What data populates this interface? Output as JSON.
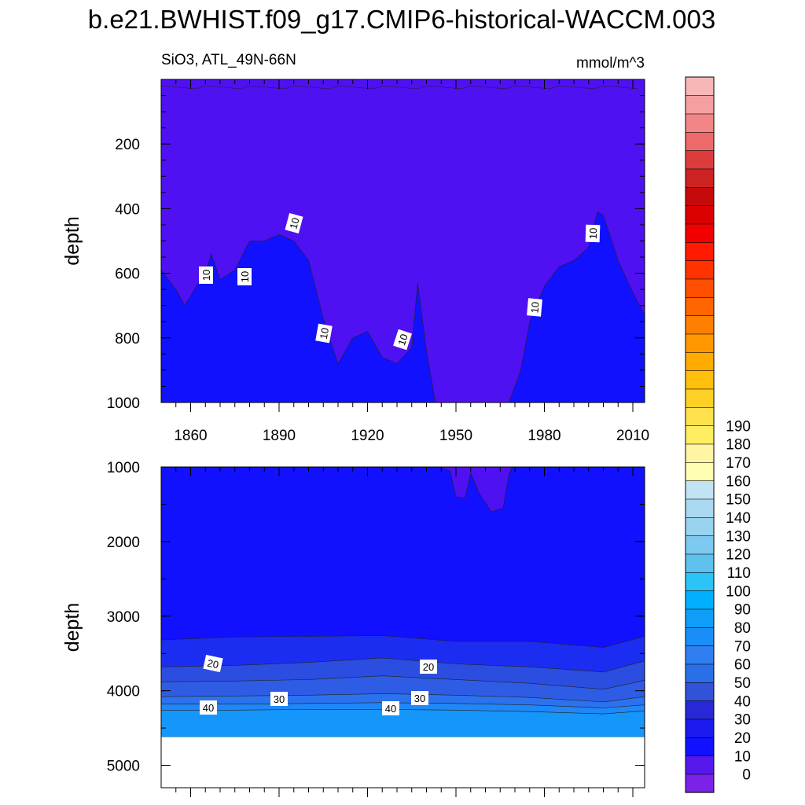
{
  "title": "b.e21.BWHIST.f09_g17.CMIP6-historical-WACCM.003",
  "chart_data": {
    "type": "contour",
    "variable": "SiO3, ATL_49N-66N",
    "units": "mmol/m^3",
    "x_ticks": [
      "1860",
      "1890",
      "1920",
      "1950",
      "1980",
      "2010"
    ],
    "panels": [
      {
        "name": "upper",
        "ylabel": "depth",
        "ylim": [
          0,
          1000
        ],
        "yticks": [
          "200",
          "400",
          "600",
          "800",
          "1000"
        ],
        "xlim": [
          1850,
          2014
        ],
        "contour_labels": [
          "10",
          "10",
          "10",
          "10",
          "10",
          "10",
          "10"
        ],
        "contour_10_depth": [
          [
            1850,
            590
          ],
          [
            1855,
            650
          ],
          [
            1858,
            700
          ],
          [
            1862,
            640
          ],
          [
            1865,
            600
          ],
          [
            1867,
            540
          ],
          [
            1870,
            620
          ],
          [
            1875,
            590
          ],
          [
            1880,
            500
          ],
          [
            1885,
            500
          ],
          [
            1890,
            480
          ],
          [
            1895,
            500
          ],
          [
            1900,
            560
          ],
          [
            1905,
            740
          ],
          [
            1910,
            880
          ],
          [
            1915,
            800
          ],
          [
            1920,
            780
          ],
          [
            1925,
            860
          ],
          [
            1930,
            880
          ],
          [
            1935,
            830
          ],
          [
            1937,
            630
          ],
          [
            1940,
            840
          ],
          [
            1943,
            1000
          ],
          [
            1968,
            1000
          ],
          [
            1972,
            900
          ],
          [
            1975,
            750
          ],
          [
            1980,
            640
          ],
          [
            1985,
            580
          ],
          [
            1990,
            560
          ],
          [
            1995,
            520
          ],
          [
            1998,
            410
          ],
          [
            2000,
            420
          ],
          [
            2005,
            560
          ],
          [
            2010,
            660
          ],
          [
            2014,
            730
          ]
        ]
      },
      {
        "name": "lower",
        "ylabel": "depth",
        "ylim": [
          1000,
          5300
        ],
        "yticks": [
          "1000",
          "2000",
          "3000",
          "4000",
          "5000"
        ],
        "xlim": [
          1850,
          2014
        ],
        "bottom_depth": 4620,
        "contour_labels": [
          "20",
          "20",
          "30",
          "30",
          "40",
          "40"
        ],
        "contour_depths": [
          {
            "level": 20,
            "depth": [
              [
                1850,
                3320
              ],
              [
                1875,
                3280
              ],
              [
                1900,
                3270
              ],
              [
                1925,
                3260
              ],
              [
                1950,
                3340
              ],
              [
                1975,
                3340
              ],
              [
                2000,
                3420
              ],
              [
                2014,
                3270
              ]
            ]
          },
          {
            "level": 25,
            "depth": [
              [
                1850,
                3680
              ],
              [
                1875,
                3660
              ],
              [
                1900,
                3620
              ],
              [
                1925,
                3560
              ],
              [
                1950,
                3640
              ],
              [
                1975,
                3680
              ],
              [
                2000,
                3750
              ],
              [
                2014,
                3600
              ]
            ]
          },
          {
            "level": 30,
            "depth": [
              [
                1850,
                3880
              ],
              [
                1875,
                3870
              ],
              [
                1900,
                3850
              ],
              [
                1925,
                3800
              ],
              [
                1950,
                3850
              ],
              [
                1975,
                3900
              ],
              [
                2000,
                3980
              ],
              [
                2014,
                3860
              ]
            ]
          },
          {
            "level": 35,
            "depth": [
              [
                1850,
                4080
              ],
              [
                1875,
                4070
              ],
              [
                1900,
                4060
              ],
              [
                1925,
                4040
              ],
              [
                1950,
                4060
              ],
              [
                1975,
                4090
              ],
              [
                2000,
                4150
              ],
              [
                2014,
                4080
              ]
            ]
          },
          {
            "level": 40,
            "depth": [
              [
                1850,
                4180
              ],
              [
                1875,
                4180
              ],
              [
                1900,
                4170
              ],
              [
                1925,
                4160
              ],
              [
                1950,
                4170
              ],
              [
                1975,
                4190
              ],
              [
                2000,
                4230
              ],
              [
                2014,
                4190
              ]
            ]
          },
          {
            "level": 45,
            "depth": [
              [
                1850,
                4260
              ],
              [
                1875,
                4260
              ],
              [
                1900,
                4250
              ],
              [
                1925,
                4250
              ],
              [
                1950,
                4260
              ],
              [
                1975,
                4280
              ],
              [
                2000,
                4310
              ],
              [
                2014,
                4270
              ]
            ]
          }
        ]
      }
    ],
    "colorbar": {
      "labels": [
        "0",
        "10",
        "20",
        "30",
        "40",
        "50",
        "60",
        "70",
        "80",
        "90",
        "100",
        "110",
        "120",
        "130",
        "140",
        "150",
        "160",
        "170",
        "180",
        "190"
      ],
      "colors": [
        "#7a23e6",
        "#5618ed",
        "#1111ff",
        "#1a1aee",
        "#2828d6",
        "#3252d8",
        "#2b6fe8",
        "#2f7ff1",
        "#1a8ef8",
        "#0f9ef7",
        "#00b0ff",
        "#2cc3f6",
        "#5ec1ee",
        "#7ec9ef",
        "#98d3ef",
        "#aad8f0",
        "#c2e3f4",
        "#fffdb1",
        "#fff5a3",
        "#ffee60",
        "#ffe14e",
        "#ffd127",
        "#ffc00c",
        "#ffab00",
        "#ff9800",
        "#ff8000",
        "#ff6500",
        "#ff4f00",
        "#ff3300",
        "#ff1a00",
        "#f20000",
        "#db0000",
        "#c40a0a",
        "#cc2222",
        "#dc3c3c",
        "#ee6a6a",
        "#f28686",
        "#f4a0a0",
        "#f7b7b7"
      ]
    },
    "fill_colors": {
      "upper_shallow": "#4f10f2",
      "upper_deep": "#1111ff",
      "band_20": "#1c2df2",
      "band_25": "#2b4de0",
      "band_30": "#2f5ce4",
      "band_35": "#2b72ee",
      "band_40": "#1f87f7",
      "band_45": "#1596fa"
    }
  }
}
